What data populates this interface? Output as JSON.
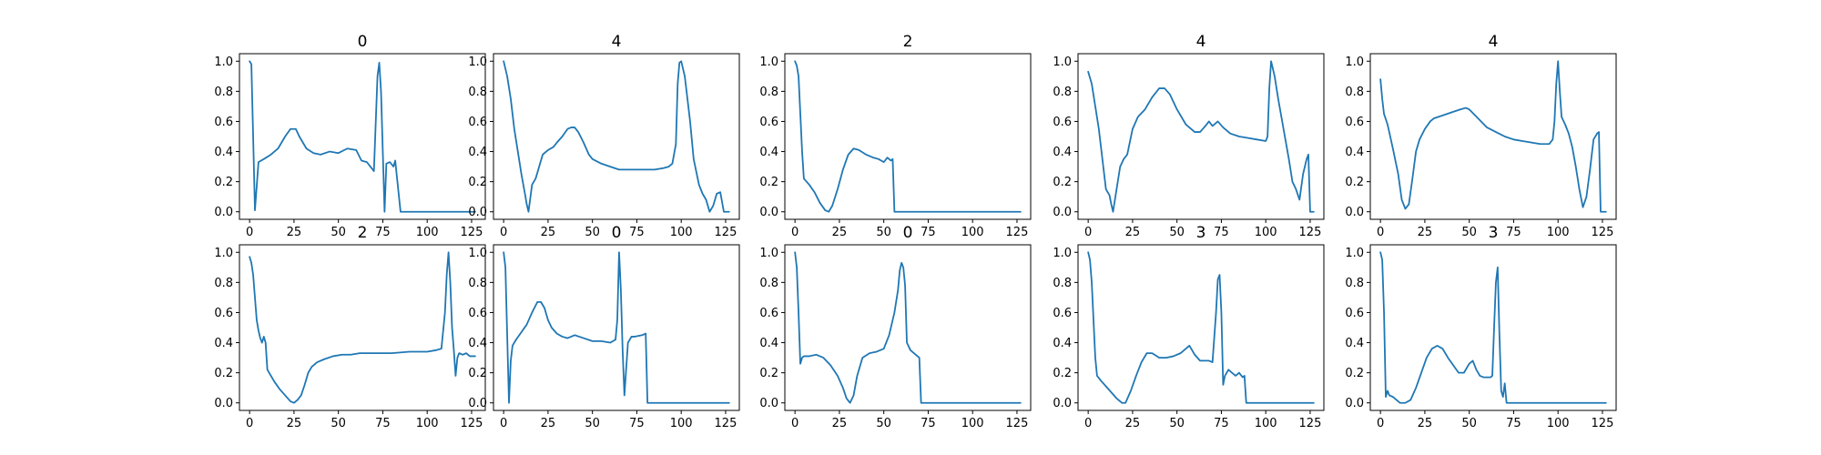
{
  "chart_data": [
    {
      "type": "line",
      "title": "0",
      "xlim": [
        0,
        127
      ],
      "ylim": [
        0,
        1
      ],
      "xticks": [
        0,
        25,
        50,
        75,
        100,
        125
      ],
      "yticks": [
        0.0,
        0.2,
        0.4,
        0.6,
        0.8,
        1.0
      ],
      "series": [
        {
          "color": "#1f77b4",
          "x": [
            0,
            1,
            3,
            5,
            8,
            12,
            16,
            20,
            23,
            26,
            28,
            32,
            36,
            40,
            45,
            50,
            55,
            60,
            63,
            66,
            68,
            70,
            72,
            73,
            74,
            76,
            77,
            79,
            81,
            82,
            85,
            90,
            100,
            110,
            120,
            127
          ],
          "y": [
            1.0,
            0.98,
            0.01,
            0.33,
            0.35,
            0.38,
            0.42,
            0.5,
            0.55,
            0.55,
            0.5,
            0.42,
            0.39,
            0.38,
            0.4,
            0.39,
            0.42,
            0.41,
            0.34,
            0.33,
            0.3,
            0.27,
            0.9,
            0.99,
            0.8,
            0.0,
            0.32,
            0.33,
            0.3,
            0.34,
            0.0,
            0.0,
            0.0,
            0.0,
            0.0,
            0.0
          ]
        }
      ]
    },
    {
      "type": "line",
      "title": "4",
      "xlim": [
        0,
        127
      ],
      "ylim": [
        0,
        1
      ],
      "xticks": [
        0,
        25,
        50,
        75,
        100,
        125
      ],
      "yticks": [
        0.0,
        0.2,
        0.4,
        0.6,
        0.8,
        1.0
      ],
      "series": [
        {
          "color": "#1f77b4",
          "x": [
            0,
            2,
            4,
            6,
            8,
            10,
            12,
            13,
            14,
            16,
            18,
            20,
            22,
            25,
            28,
            30,
            33,
            36,
            38,
            40,
            42,
            45,
            48,
            50,
            55,
            60,
            65,
            70,
            75,
            80,
            85,
            90,
            93,
            95,
            97,
            98,
            99,
            100,
            102,
            105,
            107,
            110,
            112,
            114,
            116,
            118,
            120,
            122,
            124,
            127
          ],
          "y": [
            1.0,
            0.9,
            0.75,
            0.55,
            0.4,
            0.25,
            0.12,
            0.05,
            0.0,
            0.18,
            0.22,
            0.3,
            0.38,
            0.41,
            0.43,
            0.46,
            0.5,
            0.55,
            0.56,
            0.56,
            0.53,
            0.46,
            0.38,
            0.35,
            0.32,
            0.3,
            0.28,
            0.28,
            0.28,
            0.28,
            0.28,
            0.29,
            0.3,
            0.32,
            0.45,
            0.85,
            0.99,
            1.0,
            0.9,
            0.6,
            0.35,
            0.18,
            0.12,
            0.08,
            0.0,
            0.04,
            0.12,
            0.13,
            0.0,
            0.0
          ]
        }
      ]
    },
    {
      "type": "line",
      "title": "2",
      "xlim": [
        0,
        127
      ],
      "ylim": [
        0,
        1
      ],
      "xticks": [
        0,
        25,
        50,
        75,
        100,
        125
      ],
      "yticks": [
        0.0,
        0.2,
        0.4,
        0.6,
        0.8,
        1.0
      ],
      "series": [
        {
          "color": "#1f77b4",
          "x": [
            0,
            1,
            2,
            3,
            4,
            5,
            8,
            11,
            14,
            17,
            19,
            21,
            24,
            27,
            30,
            33,
            36,
            40,
            44,
            47,
            50,
            52,
            54,
            55,
            56,
            60,
            70,
            80,
            90,
            100,
            110,
            120,
            127
          ],
          "y": [
            1.0,
            0.97,
            0.9,
            0.65,
            0.4,
            0.22,
            0.18,
            0.13,
            0.06,
            0.01,
            0.0,
            0.04,
            0.15,
            0.28,
            0.38,
            0.42,
            0.41,
            0.38,
            0.36,
            0.35,
            0.33,
            0.36,
            0.34,
            0.35,
            0.0,
            0.0,
            0.0,
            0.0,
            0.0,
            0.0,
            0.0,
            0.0,
            0.0
          ]
        }
      ]
    },
    {
      "type": "line",
      "title": "4",
      "xlim": [
        0,
        127
      ],
      "ylim": [
        0,
        1
      ],
      "xticks": [
        0,
        25,
        50,
        75,
        100,
        125
      ],
      "yticks": [
        0.0,
        0.2,
        0.4,
        0.6,
        0.8,
        1.0
      ],
      "series": [
        {
          "color": "#1f77b4",
          "x": [
            0,
            2,
            4,
            6,
            8,
            10,
            12,
            13,
            14,
            16,
            18,
            20,
            22,
            25,
            28,
            32,
            36,
            40,
            43,
            46,
            50,
            55,
            60,
            63,
            66,
            68,
            70,
            73,
            76,
            80,
            85,
            90,
            95,
            100,
            101,
            102,
            103,
            105,
            107,
            110,
            113,
            115,
            117,
            119,
            121,
            123,
            124,
            125,
            127
          ],
          "y": [
            0.93,
            0.85,
            0.7,
            0.55,
            0.35,
            0.15,
            0.11,
            0.05,
            0.0,
            0.15,
            0.3,
            0.35,
            0.38,
            0.55,
            0.63,
            0.68,
            0.76,
            0.82,
            0.82,
            0.78,
            0.68,
            0.58,
            0.53,
            0.53,
            0.57,
            0.6,
            0.57,
            0.6,
            0.56,
            0.52,
            0.5,
            0.49,
            0.48,
            0.47,
            0.5,
            0.82,
            1.0,
            0.9,
            0.75,
            0.55,
            0.35,
            0.2,
            0.15,
            0.08,
            0.25,
            0.35,
            0.38,
            0.0,
            0.0
          ]
        }
      ]
    },
    {
      "type": "line",
      "title": "4",
      "xlim": [
        0,
        127
      ],
      "ylim": [
        0,
        1
      ],
      "xticks": [
        0,
        25,
        50,
        75,
        100,
        125
      ],
      "yticks": [
        0.0,
        0.2,
        0.4,
        0.6,
        0.8,
        1.0
      ],
      "series": [
        {
          "color": "#1f77b4",
          "x": [
            0,
            1,
            2,
            4,
            7,
            10,
            12,
            14,
            16,
            18,
            20,
            22,
            25,
            28,
            30,
            35,
            40,
            45,
            48,
            50,
            55,
            60,
            65,
            70,
            75,
            80,
            85,
            90,
            95,
            97,
            98,
            99,
            100,
            101,
            102,
            104,
            106,
            108,
            110,
            112,
            114,
            116,
            118,
            120,
            122,
            123,
            124,
            127
          ],
          "y": [
            0.88,
            0.75,
            0.65,
            0.58,
            0.42,
            0.25,
            0.08,
            0.02,
            0.05,
            0.22,
            0.4,
            0.48,
            0.55,
            0.6,
            0.62,
            0.64,
            0.66,
            0.68,
            0.69,
            0.68,
            0.62,
            0.56,
            0.53,
            0.5,
            0.48,
            0.47,
            0.46,
            0.45,
            0.45,
            0.48,
            0.6,
            0.85,
            1.0,
            0.8,
            0.63,
            0.58,
            0.52,
            0.43,
            0.3,
            0.15,
            0.03,
            0.1,
            0.28,
            0.48,
            0.52,
            0.53,
            0.0,
            0.0
          ]
        }
      ]
    },
    {
      "type": "line",
      "title": "2",
      "xlim": [
        0,
        127
      ],
      "ylim": [
        0,
        1
      ],
      "xticks": [
        0,
        25,
        50,
        75,
        100,
        125
      ],
      "yticks": [
        0.0,
        0.2,
        0.4,
        0.6,
        0.8,
        1.0
      ],
      "series": [
        {
          "color": "#1f77b4",
          "x": [
            0,
            1,
            2,
            3,
            4,
            5,
            6,
            7,
            8,
            9,
            10,
            12,
            14,
            17,
            20,
            23,
            25,
            27,
            29,
            31,
            33,
            35,
            38,
            42,
            47,
            52,
            57,
            62,
            70,
            80,
            90,
            100,
            105,
            108,
            110,
            111,
            112,
            113,
            114,
            115,
            116,
            117,
            118,
            120,
            122,
            124,
            127
          ],
          "y": [
            0.97,
            0.93,
            0.85,
            0.7,
            0.55,
            0.48,
            0.43,
            0.4,
            0.44,
            0.4,
            0.22,
            0.18,
            0.14,
            0.09,
            0.05,
            0.01,
            0.0,
            0.02,
            0.05,
            0.12,
            0.2,
            0.24,
            0.27,
            0.29,
            0.31,
            0.32,
            0.32,
            0.33,
            0.33,
            0.33,
            0.34,
            0.34,
            0.35,
            0.36,
            0.6,
            0.85,
            1.0,
            0.8,
            0.5,
            0.35,
            0.18,
            0.3,
            0.33,
            0.32,
            0.33,
            0.31,
            0.31
          ]
        }
      ]
    },
    {
      "type": "line",
      "title": "0",
      "xlim": [
        0,
        127
      ],
      "ylim": [
        0,
        1
      ],
      "xticks": [
        0,
        25,
        50,
        75,
        100,
        125
      ],
      "yticks": [
        0.0,
        0.2,
        0.4,
        0.6,
        0.8,
        1.0
      ],
      "series": [
        {
          "color": "#1f77b4",
          "x": [
            0,
            1,
            2,
            3,
            4,
            5,
            7,
            10,
            13,
            16,
            19,
            21,
            23,
            25,
            27,
            30,
            33,
            36,
            40,
            45,
            50,
            55,
            60,
            63,
            64,
            65,
            66,
            67,
            68,
            70,
            72,
            74,
            78,
            80,
            81,
            85,
            90,
            100,
            110,
            120,
            127
          ],
          "y": [
            1.0,
            0.9,
            0.45,
            0.0,
            0.28,
            0.38,
            0.42,
            0.47,
            0.52,
            0.6,
            0.67,
            0.67,
            0.63,
            0.55,
            0.5,
            0.46,
            0.44,
            0.43,
            0.45,
            0.43,
            0.41,
            0.41,
            0.4,
            0.42,
            0.55,
            1.0,
            0.75,
            0.35,
            0.05,
            0.4,
            0.44,
            0.44,
            0.45,
            0.46,
            0.0,
            0.0,
            0.0,
            0.0,
            0.0,
            0.0,
            0.0
          ]
        }
      ]
    },
    {
      "type": "line",
      "title": "0",
      "xlim": [
        0,
        127
      ],
      "ylim": [
        0,
        1
      ],
      "xticks": [
        0,
        25,
        50,
        75,
        100,
        125
      ],
      "yticks": [
        0.0,
        0.2,
        0.4,
        0.6,
        0.8,
        1.0
      ],
      "series": [
        {
          "color": "#1f77b4",
          "x": [
            0,
            1,
            2,
            3,
            4,
            5,
            8,
            12,
            16,
            20,
            24,
            27,
            29,
            31,
            33,
            35,
            38,
            42,
            46,
            50,
            53,
            56,
            58,
            59,
            60,
            61,
            62,
            63,
            65,
            68,
            70,
            71,
            75,
            80,
            90,
            100,
            110,
            120,
            127
          ],
          "y": [
            1.0,
            0.9,
            0.6,
            0.26,
            0.3,
            0.31,
            0.31,
            0.32,
            0.3,
            0.25,
            0.18,
            0.1,
            0.03,
            0.0,
            0.05,
            0.18,
            0.3,
            0.33,
            0.34,
            0.36,
            0.45,
            0.6,
            0.75,
            0.88,
            0.93,
            0.9,
            0.78,
            0.4,
            0.35,
            0.32,
            0.3,
            0.0,
            0.0,
            0.0,
            0.0,
            0.0,
            0.0,
            0.0,
            0.0
          ]
        }
      ]
    },
    {
      "type": "line",
      "title": "3",
      "xlim": [
        0,
        127
      ],
      "ylim": [
        0,
        1
      ],
      "xticks": [
        0,
        25,
        50,
        75,
        100,
        125
      ],
      "yticks": [
        0.0,
        0.2,
        0.4,
        0.6,
        0.8,
        1.0
      ],
      "series": [
        {
          "color": "#1f77b4",
          "x": [
            0,
            1,
            2,
            3,
            4,
            5,
            7,
            10,
            13,
            16,
            19,
            21,
            24,
            27,
            30,
            33,
            36,
            40,
            44,
            48,
            52,
            55,
            57,
            60,
            63,
            66,
            68,
            70,
            72,
            73,
            74,
            75,
            76,
            77,
            79,
            81,
            83,
            85,
            87,
            88,
            89,
            90,
            95,
            100,
            110,
            120,
            127
          ],
          "y": [
            1.0,
            0.95,
            0.8,
            0.55,
            0.3,
            0.18,
            0.15,
            0.11,
            0.07,
            0.03,
            0.0,
            0.0,
            0.08,
            0.18,
            0.27,
            0.33,
            0.33,
            0.3,
            0.3,
            0.31,
            0.33,
            0.36,
            0.38,
            0.32,
            0.28,
            0.28,
            0.28,
            0.27,
            0.6,
            0.82,
            0.85,
            0.6,
            0.12,
            0.18,
            0.22,
            0.2,
            0.18,
            0.2,
            0.17,
            0.18,
            0.0,
            0.0,
            0.0,
            0.0,
            0.0,
            0.0,
            0.0
          ]
        }
      ]
    },
    {
      "type": "line",
      "title": "3",
      "xlim": [
        0,
        127
      ],
      "ylim": [
        0,
        1
      ],
      "xticks": [
        0,
        25,
        50,
        75,
        100,
        125
      ],
      "yticks": [
        0.0,
        0.2,
        0.4,
        0.6,
        0.8,
        1.0
      ],
      "series": [
        {
          "color": "#1f77b4",
          "x": [
            0,
            1,
            2,
            3,
            4,
            5,
            7,
            9,
            11,
            14,
            17,
            20,
            23,
            26,
            29,
            32,
            35,
            38,
            41,
            44,
            47,
            50,
            52,
            54,
            56,
            58,
            60,
            62,
            63,
            64,
            65,
            66,
            67,
            68,
            69,
            70,
            71,
            72,
            75,
            80,
            90,
            100,
            110,
            120,
            127
          ],
          "y": [
            1.0,
            0.95,
            0.6,
            0.04,
            0.08,
            0.05,
            0.04,
            0.02,
            0.0,
            0.0,
            0.02,
            0.1,
            0.2,
            0.3,
            0.36,
            0.38,
            0.36,
            0.3,
            0.25,
            0.2,
            0.2,
            0.26,
            0.28,
            0.22,
            0.18,
            0.17,
            0.17,
            0.17,
            0.18,
            0.5,
            0.8,
            0.9,
            0.45,
            0.08,
            0.04,
            0.13,
            0.0,
            0.0,
            0.0,
            0.0,
            0.0,
            0.0,
            0.0,
            0.0,
            0.0
          ]
        }
      ]
    }
  ]
}
